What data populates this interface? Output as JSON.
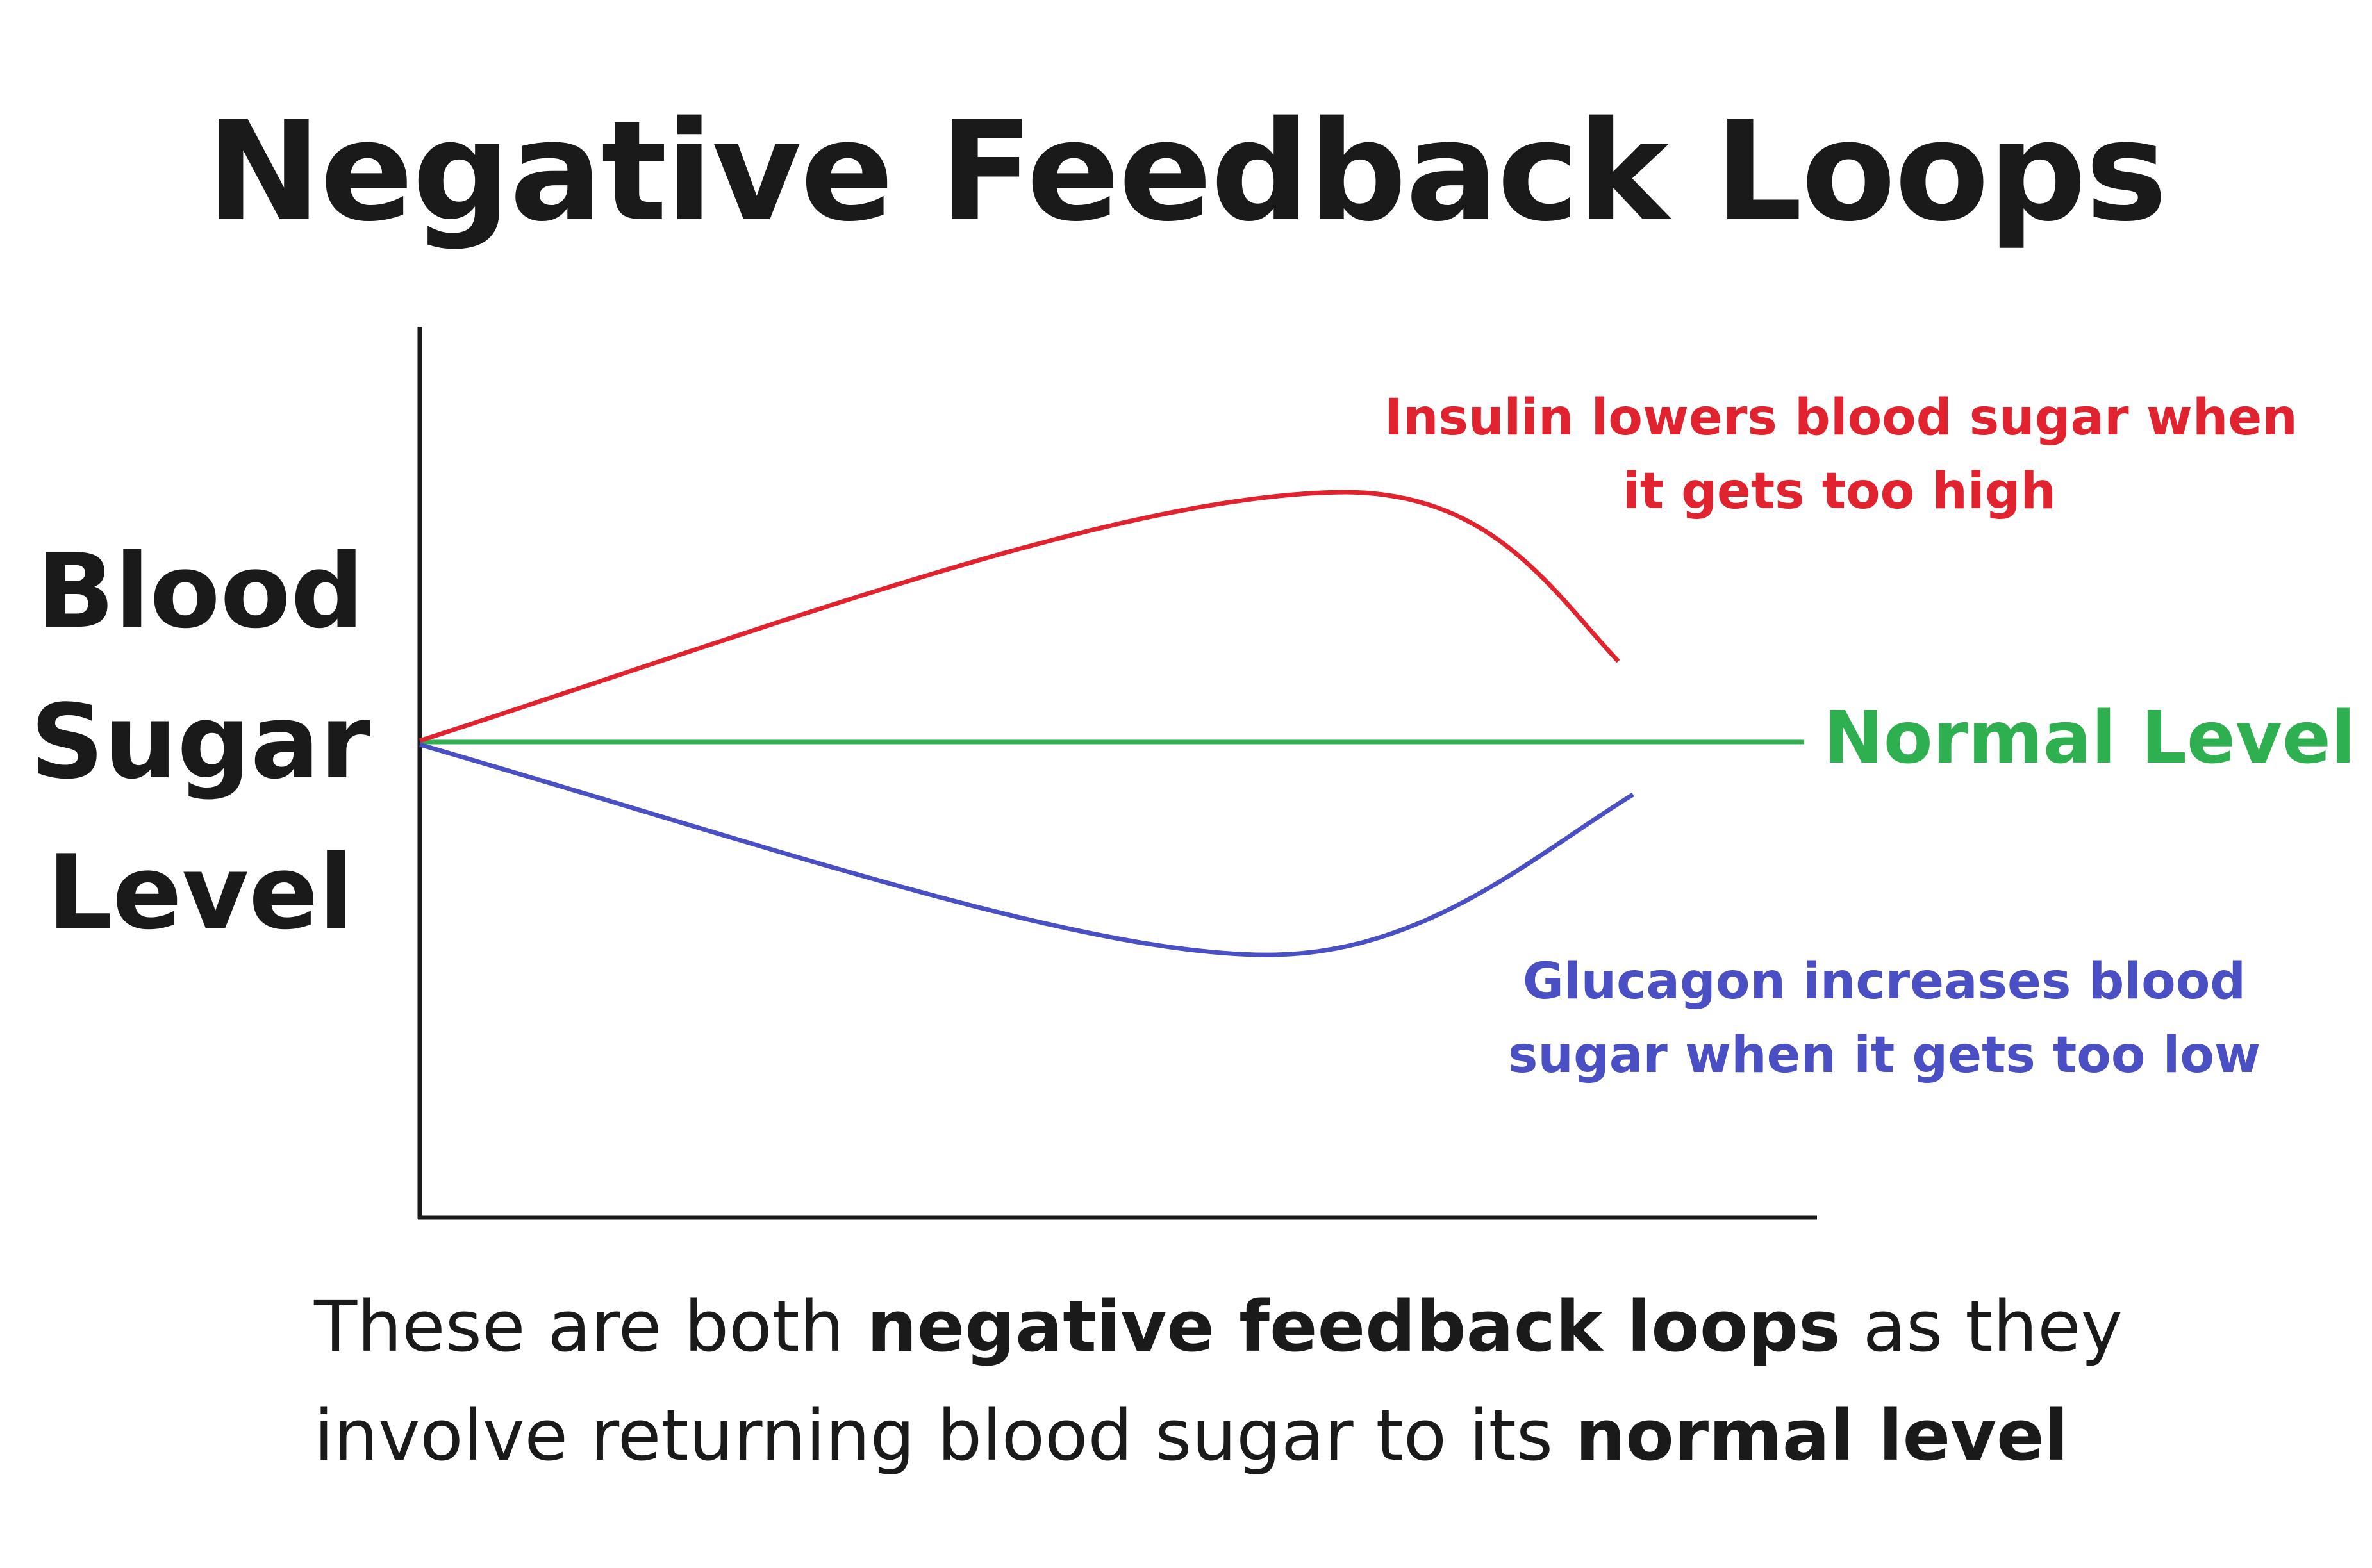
{
  "title": "Negative Feedback Loops",
  "ylabel": {
    "line1": "Blood",
    "line2": "Sugar",
    "line3": "Level"
  },
  "annotations": {
    "insulin": {
      "line1": "Insulin lowers blood sugar when",
      "line2": "it gets too high",
      "color": "#e0232e"
    },
    "glucagon": {
      "line1": "Glucagon increases blood",
      "line2": "sugar when it gets too low",
      "color": "#4a4fc4"
    },
    "normal": {
      "label": "Normal Level",
      "color": "#2fb050"
    }
  },
  "caption": {
    "line1_a": "These are both ",
    "line1_b": "negative feedback loops",
    "line1_c": " as they",
    "line2_a": "involve returning blood sugar to its ",
    "line2_b": "normal level"
  },
  "colors": {
    "axis": "#1a1a1a",
    "insulin_curve": "#e0232e",
    "glucagon_curve": "#4a4fc4",
    "normal_line": "#2fb050"
  }
}
